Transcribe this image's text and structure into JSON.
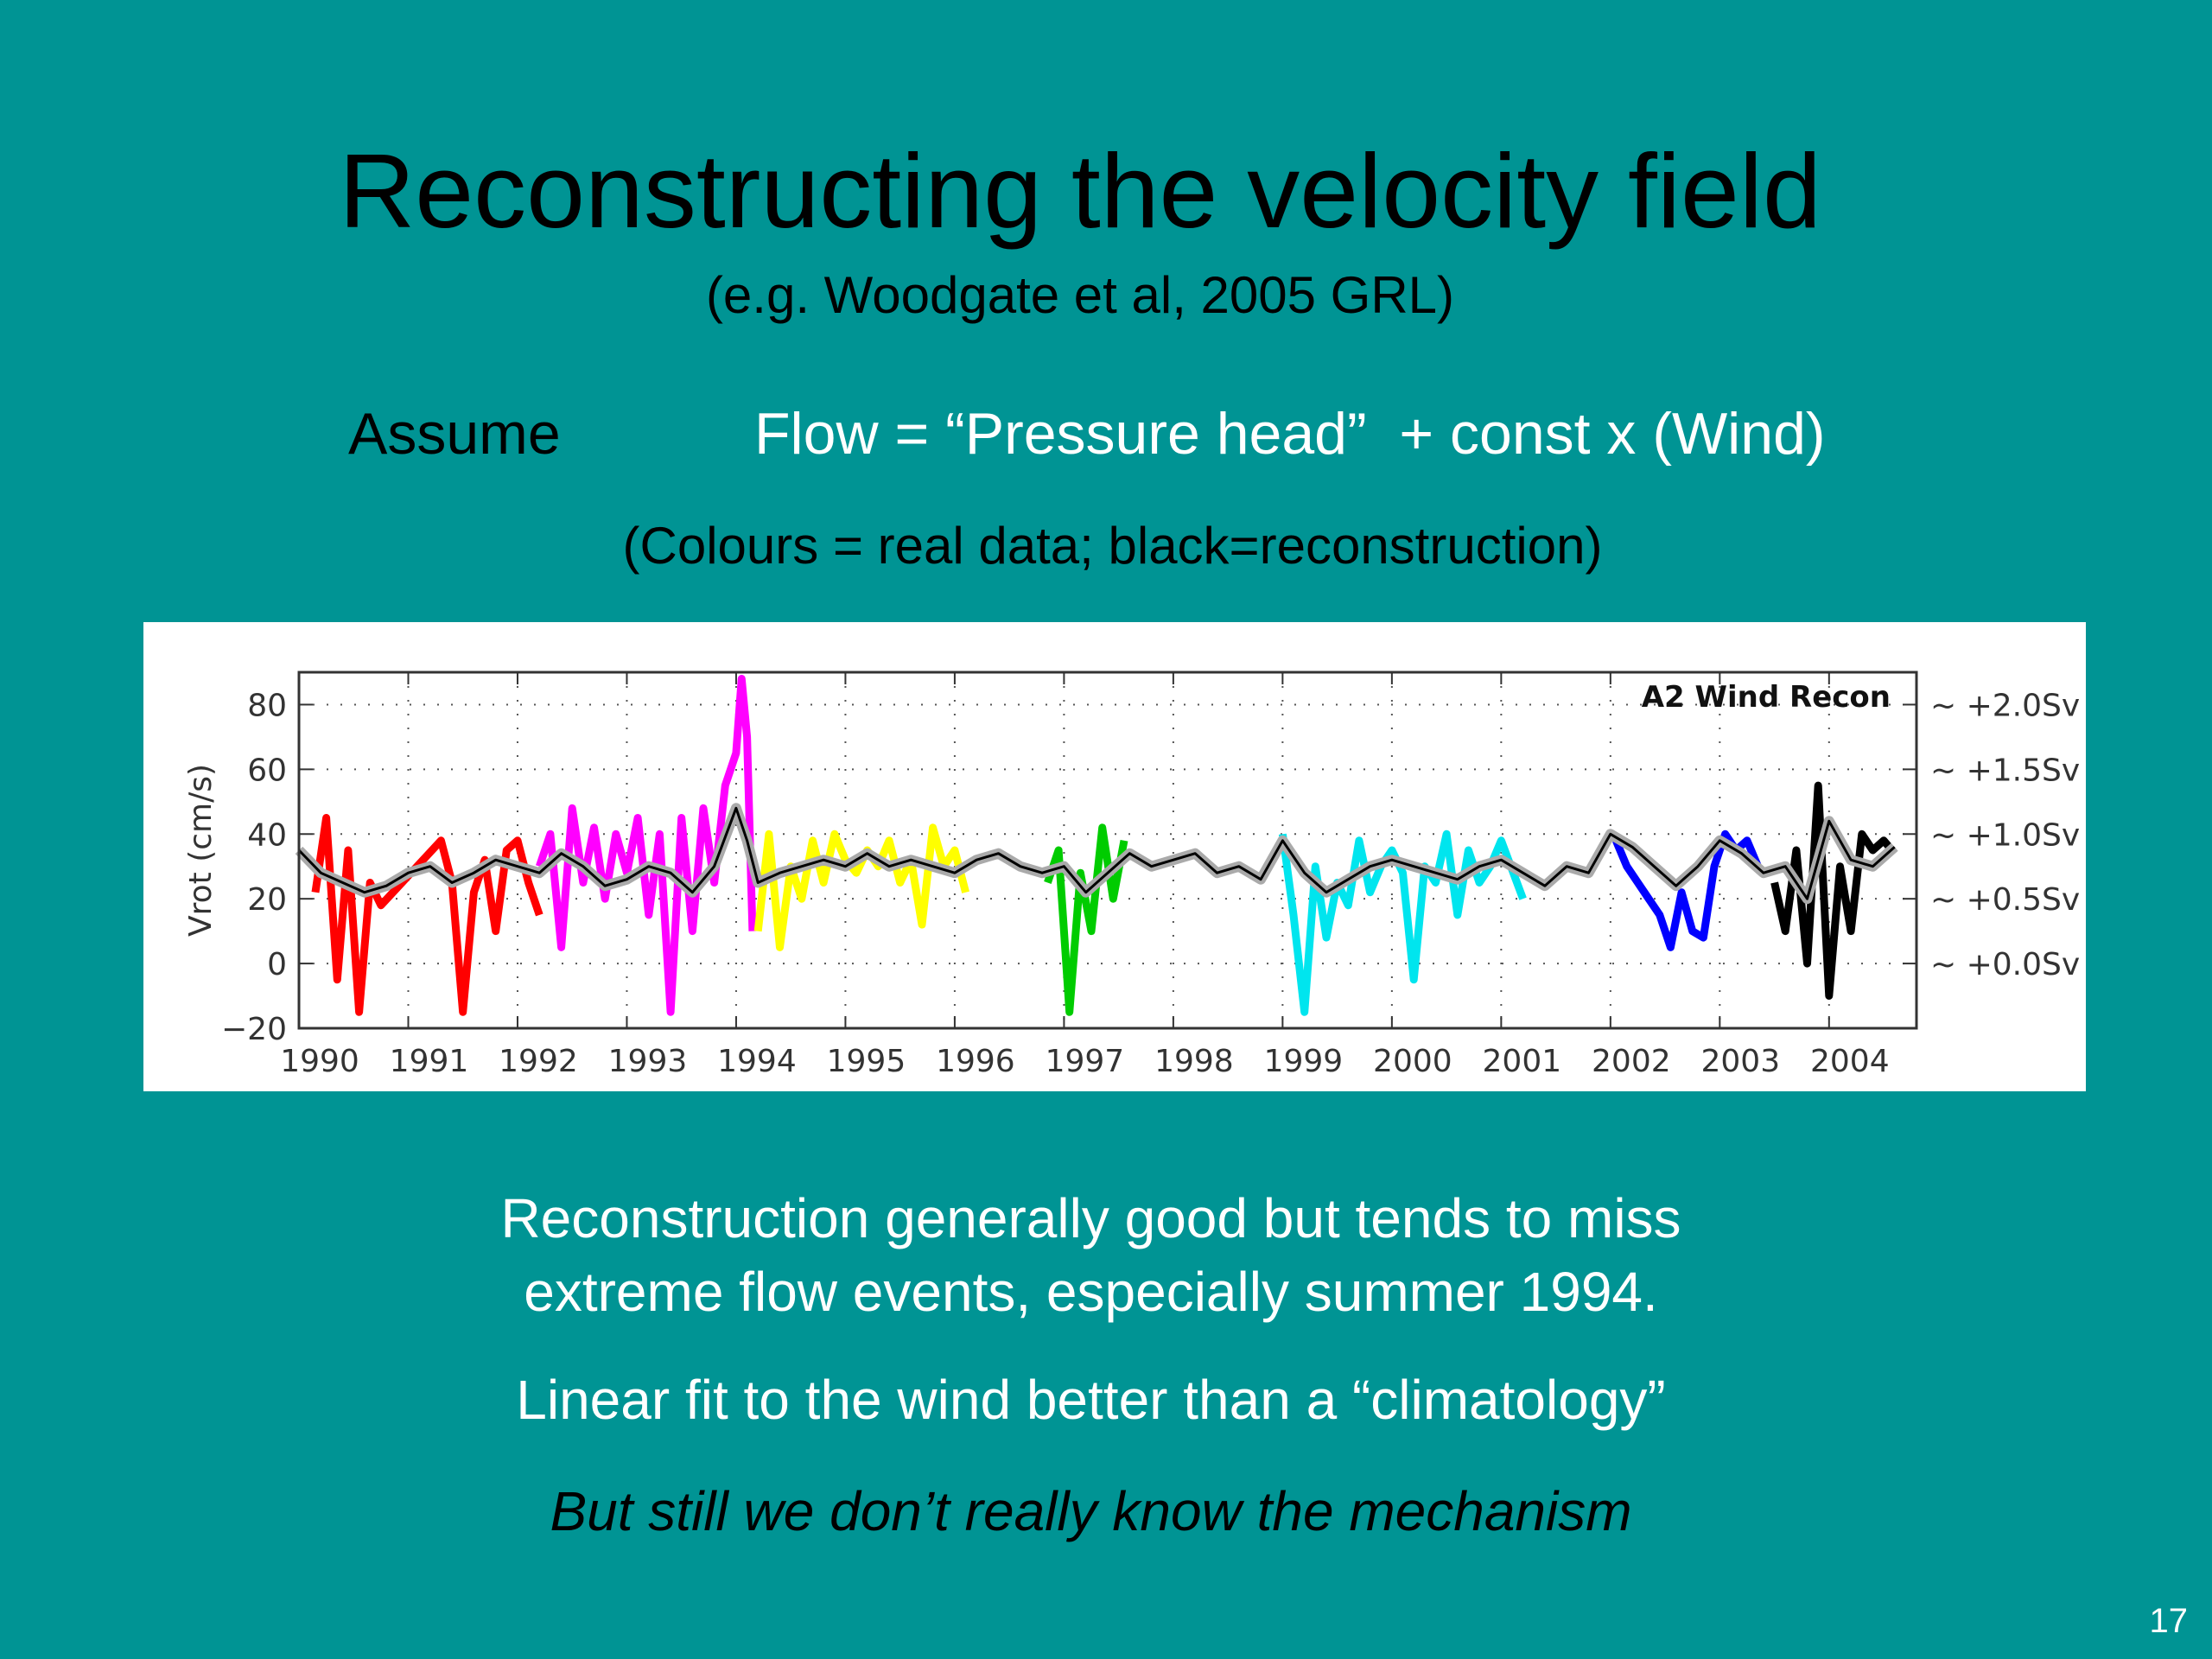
{
  "slide": {
    "title": "Reconstructing the velocity field",
    "subtitle": "(e.g. Woodgate et al, 2005 GRL)",
    "assume_label": "Assume",
    "assume_equation": "Flow = “Pressure head”  + const x (Wind)",
    "colours_note": "(Colours = real data; black=reconstruction)",
    "conclusions": [
      "Reconstruction generally good but tends to miss",
      "extreme flow events, especially summer 1994.",
      "Linear fit to the wind better than a “climatology”",
      "But still we don’t really know the mechanism"
    ],
    "page_number": "17"
  },
  "chart_data": {
    "type": "line",
    "title": "A2 Wind Recon",
    "ylabel": "Vrot (cm/s)",
    "xlabel": "",
    "xlim": [
      1990,
      2004.8
    ],
    "ylim": [
      -20,
      90
    ],
    "yticks": [
      -20,
      0,
      20,
      40,
      60,
      80
    ],
    "xticks": [
      "1990",
      "1991",
      "1992",
      "1993",
      "1994",
      "1995",
      "1996",
      "1997",
      "1998",
      "1999",
      "2000",
      "2001",
      "2002",
      "2003",
      "2004"
    ],
    "right_axis_labels": [
      {
        "y": 80,
        "label": "~ +2.0Sv"
      },
      {
        "y": 60,
        "label": "~ +1.5Sv"
      },
      {
        "y": 40,
        "label": "~ +1.0Sv"
      },
      {
        "y": 20,
        "label": "~ +0.5Sv"
      },
      {
        "y": 0,
        "label": "~ +0.0Sv"
      }
    ],
    "grid": true,
    "series": [
      {
        "color": "#ff0000",
        "x": [
          1990.15,
          1990.25,
          1990.35,
          1990.45,
          1990.55,
          1990.65,
          1990.75,
          1991.3,
          1991.4,
          1991.5,
          1991.6,
          1991.7,
          1991.8,
          1991.9,
          1992.0,
          1992.1,
          1992.2
        ],
        "y": [
          22,
          45,
          -5,
          35,
          -15,
          25,
          18,
          38,
          25,
          -15,
          22,
          32,
          10,
          35,
          38,
          25,
          15
        ]
      },
      {
        "color": "#ff00ff",
        "x": [
          1992.2,
          1992.3,
          1992.4,
          1992.5,
          1992.6,
          1992.7,
          1992.8,
          1992.9,
          1993.0,
          1993.1,
          1993.2,
          1993.3,
          1993.4,
          1993.5,
          1993.6,
          1993.7,
          1993.8,
          1993.9,
          1994.0,
          1994.05,
          1994.1,
          1994.15
        ],
        "y": [
          30,
          40,
          5,
          48,
          25,
          42,
          20,
          40,
          28,
          45,
          15,
          40,
          -15,
          45,
          10,
          48,
          25,
          55,
          65,
          88,
          70,
          10
        ]
      },
      {
        "color": "#ffff00",
        "x": [
          1994.2,
          1994.3,
          1994.4,
          1994.5,
          1994.6,
          1994.7,
          1994.8,
          1994.9,
          1995.0,
          1995.1,
          1995.2,
          1995.3,
          1995.4,
          1995.5,
          1995.6,
          1995.7,
          1995.8,
          1995.9,
          1996.0,
          1996.1
        ],
        "y": [
          10,
          40,
          5,
          30,
          20,
          38,
          25,
          40,
          32,
          28,
          35,
          30,
          38,
          25,
          32,
          12,
          42,
          30,
          35,
          22
        ]
      },
      {
        "color": "#00cc00",
        "x": [
          1996.85,
          1996.95,
          1997.05,
          1997.15,
          1997.25,
          1997.35,
          1997.45,
          1997.55
        ],
        "y": [
          25,
          35,
          -15,
          28,
          10,
          42,
          20,
          38
        ]
      },
      {
        "color": "#00e5ee",
        "x": [
          1999.0,
          1999.1,
          1999.2,
          1999.3,
          1999.4,
          1999.5,
          1999.6,
          1999.7,
          1999.8,
          1999.9,
          2000.0,
          2000.1,
          2000.2,
          2000.3,
          2000.4,
          2000.5,
          2000.6,
          2000.7,
          2000.8,
          2000.9,
          2001.0,
          2001.2
        ],
        "y": [
          40,
          15,
          -15,
          30,
          8,
          25,
          18,
          38,
          22,
          30,
          35,
          28,
          -5,
          30,
          25,
          40,
          15,
          35,
          25,
          30,
          38,
          20
        ]
      },
      {
        "color": "#0000ff",
        "x": [
          2002.05,
          2002.15,
          2002.25,
          2002.35,
          2002.45,
          2002.55,
          2002.65,
          2002.75,
          2002.85,
          2002.95,
          2003.05,
          2003.15,
          2003.25,
          2003.35
        ],
        "y": [
          38,
          30,
          25,
          20,
          15,
          5,
          22,
          10,
          8,
          30,
          40,
          35,
          38,
          30
        ]
      },
      {
        "color": "#000000",
        "x": [
          2003.5,
          2003.6,
          2003.7,
          2003.8,
          2003.9,
          2004.0,
          2004.1,
          2004.2,
          2004.3,
          2004.4,
          2004.5,
          2004.6
        ],
        "y": [
          25,
          10,
          35,
          0,
          55,
          -10,
          30,
          10,
          40,
          35,
          38,
          34
        ]
      },
      {
        "color": "#000000",
        "x": [
          1990.0,
          1990.2,
          1990.4,
          1990.6,
          1990.8,
          1991.0,
          1991.2,
          1991.4,
          1991.6,
          1991.8,
          1992.0,
          1992.2,
          1992.4,
          1992.6,
          1992.8,
          1993.0,
          1993.2,
          1993.4,
          1993.6,
          1993.8,
          1994.0,
          1994.1,
          1994.2,
          1994.4,
          1994.6,
          1994.8,
          1995.0,
          1995.2,
          1995.4,
          1995.6,
          1995.8,
          1996.0,
          1996.2,
          1996.4,
          1996.6,
          1996.8,
          1997.0,
          1997.2,
          1997.4,
          1997.6,
          1997.8,
          1998.0,
          1998.2,
          1998.4,
          1998.6,
          1998.8,
          1999.0,
          1999.2,
          1999.4,
          1999.6,
          1999.8,
          2000.0,
          2000.2,
          2000.4,
          2000.6,
          2000.8,
          2001.0,
          2001.2,
          2001.4,
          2001.6,
          2001.8,
          2002.0,
          2002.2,
          2002.4,
          2002.6,
          2002.8,
          2003.0,
          2003.2,
          2003.4,
          2003.6,
          2003.8,
          2004.0,
          2004.2,
          2004.4,
          2004.6
        ],
        "y": [
          35,
          28,
          25,
          22,
          24,
          28,
          30,
          25,
          28,
          32,
          30,
          28,
          34,
          30,
          24,
          26,
          30,
          28,
          22,
          30,
          48,
          38,
          25,
          28,
          30,
          32,
          30,
          34,
          30,
          32,
          30,
          28,
          32,
          34,
          30,
          28,
          30,
          22,
          28,
          34,
          30,
          32,
          34,
          28,
          30,
          26,
          38,
          28,
          22,
          26,
          30,
          32,
          30,
          28,
          26,
          30,
          32,
          28,
          24,
          30,
          28,
          40,
          36,
          30,
          24,
          30,
          38,
          34,
          28,
          30,
          20,
          44,
          32,
          30,
          36
        ]
      }
    ]
  }
}
